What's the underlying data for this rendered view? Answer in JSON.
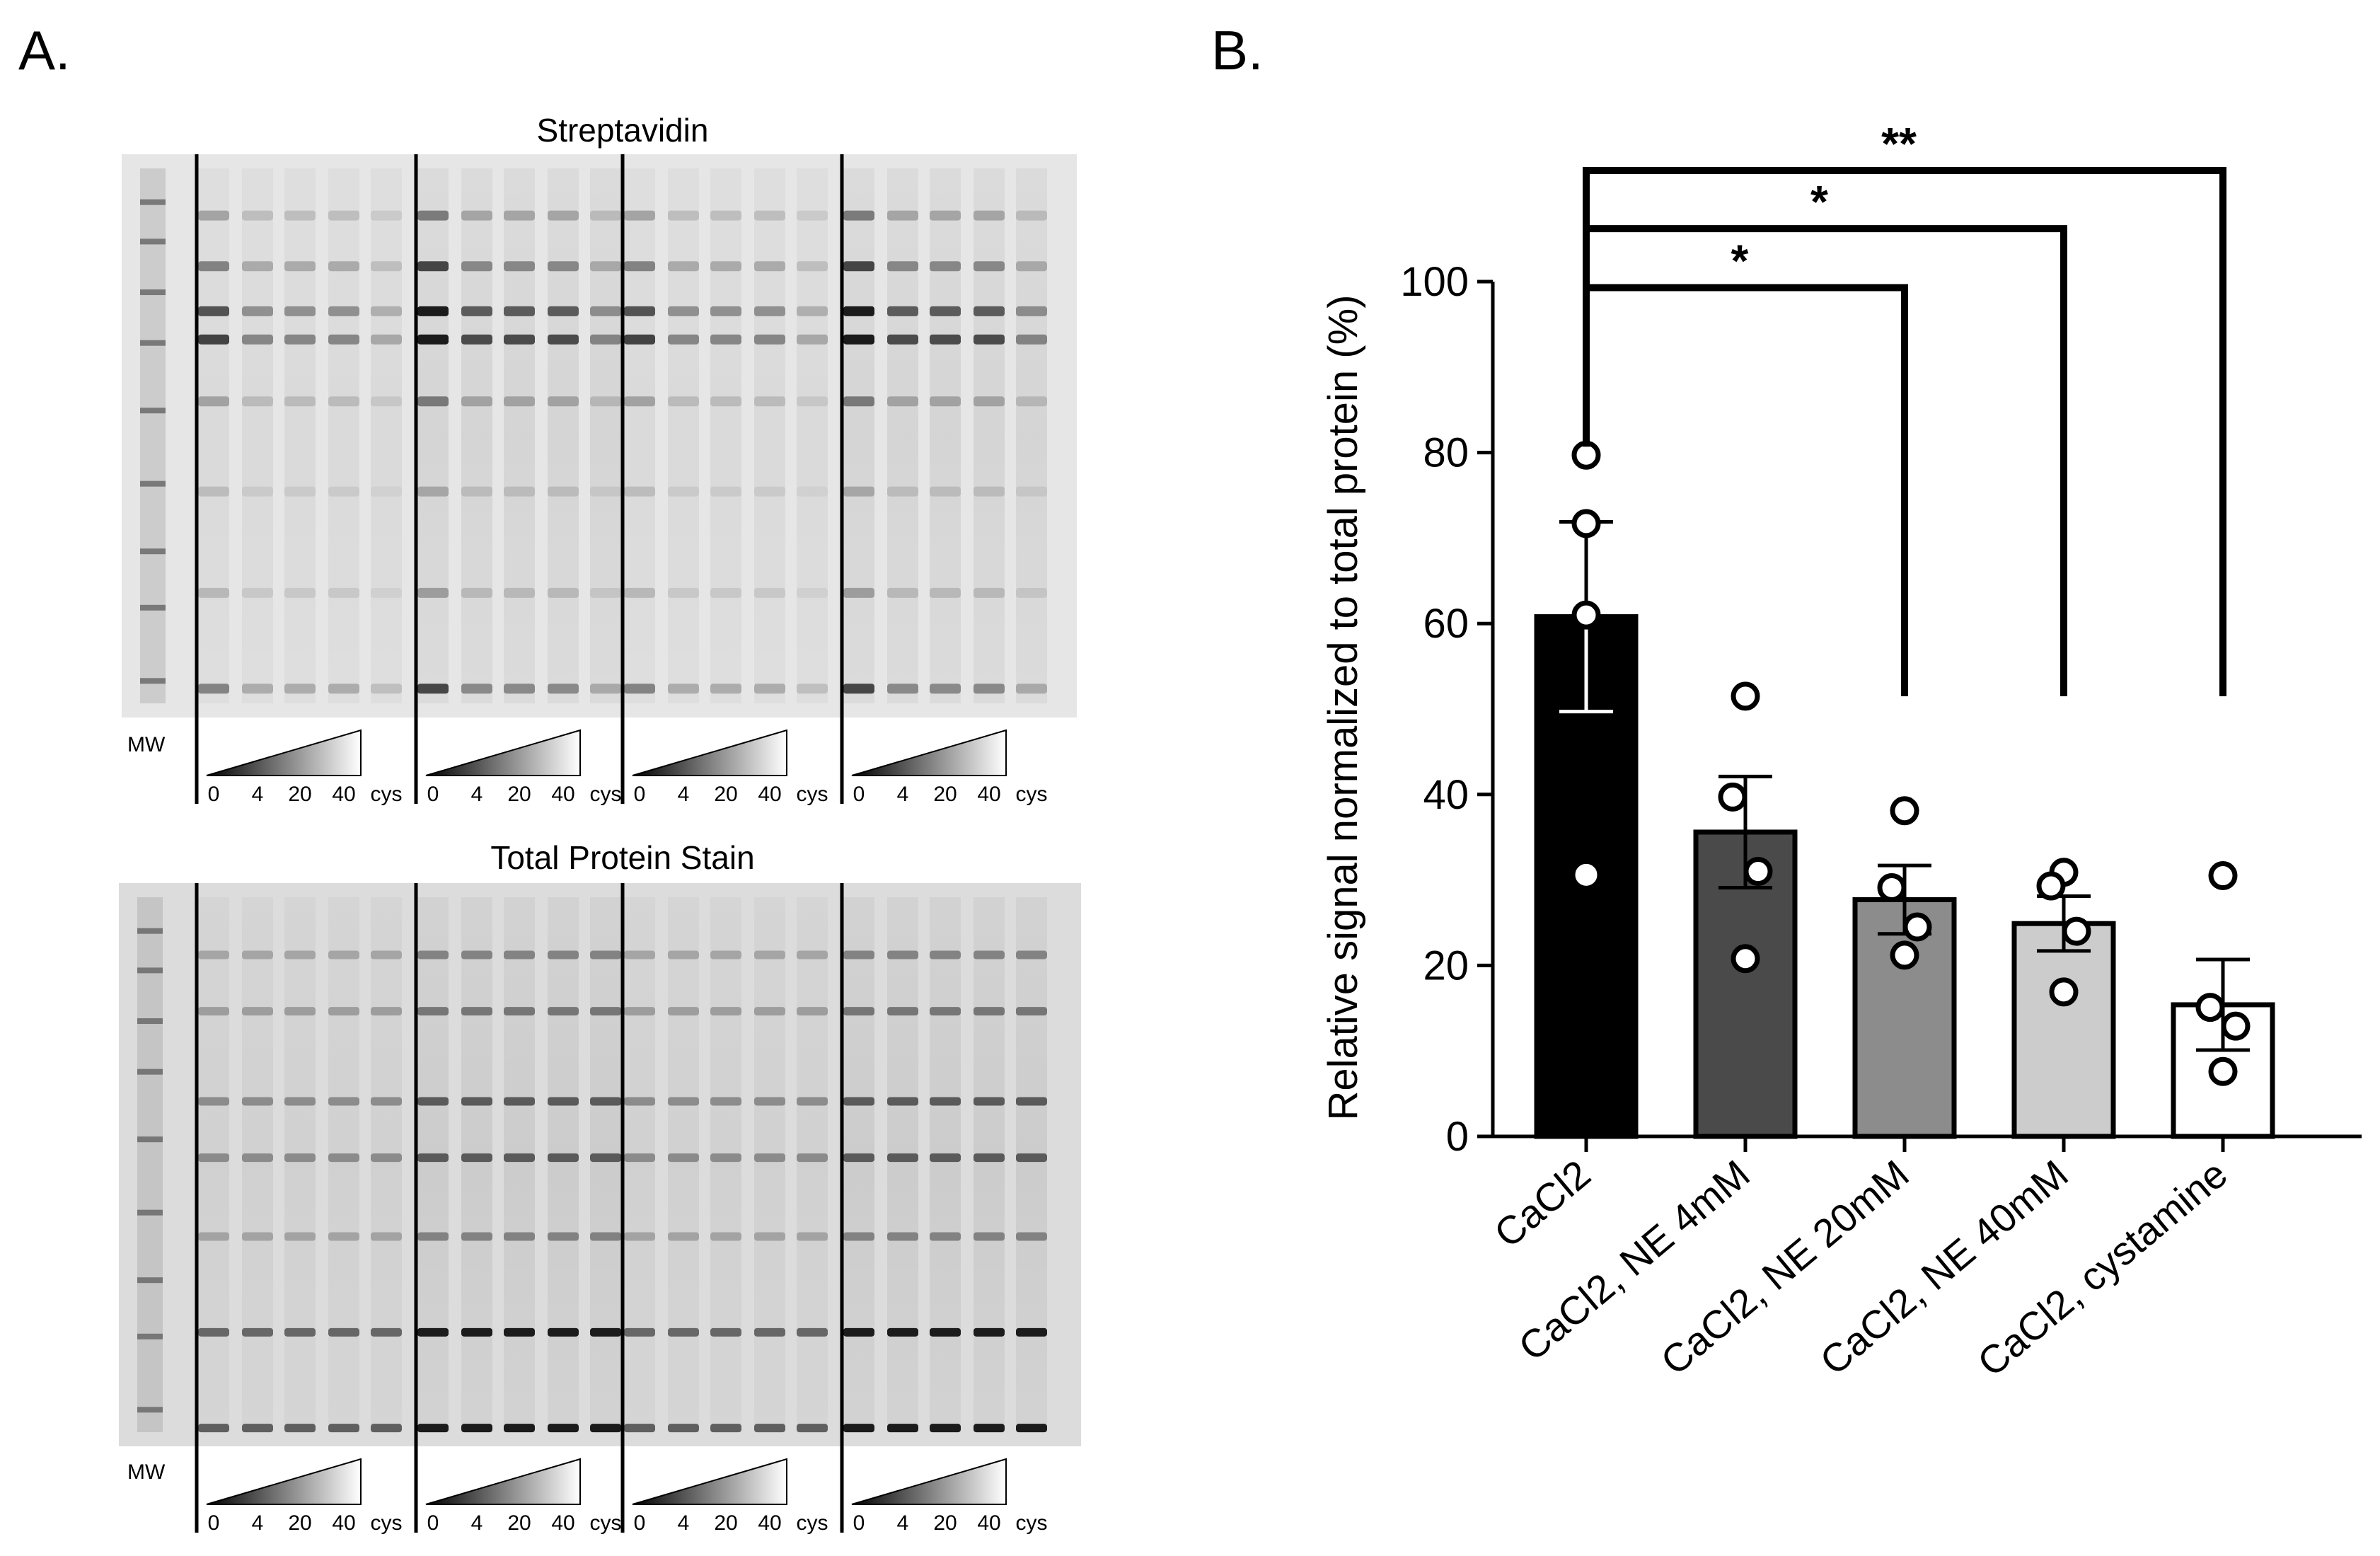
{
  "panel_a": {
    "label": "A.",
    "blots": [
      {
        "title": "Streptavidin"
      },
      {
        "title": "Total Protein Stain"
      }
    ],
    "mw_label": "MW",
    "lane_labels": [
      "0",
      "4",
      "20",
      "40",
      "cys"
    ],
    "group_count": 4
  },
  "panel_b": {
    "label": "B."
  },
  "chart_data": {
    "type": "bar",
    "categories": [
      "CaCl2",
      "CaCl2, NE 4mM",
      "CaCl2, NE 20mM",
      "CaCl2, NE 40mM",
      "CaCl2, cystamine"
    ],
    "values": [
      60.8,
      35.6,
      27.7,
      24.9,
      15.4
    ],
    "sem": [
      11.1,
      6.5,
      4.0,
      3.2,
      5.3
    ],
    "points": [
      [
        79.7,
        71.7,
        61.0,
        30.6
      ],
      [
        51.5,
        39.7,
        31.0,
        20.8
      ],
      [
        38.1,
        29.1,
        24.5,
        21.2
      ],
      [
        30.9,
        29.3,
        24.0,
        16.9
      ],
      [
        30.5,
        15.1,
        12.9,
        7.6
      ]
    ],
    "bar_colors": [
      "#000000",
      "#4a4a4a",
      "#8c8c8c",
      "#cccccc",
      "#ffffff"
    ],
    "ylabel": "Relative signal normalized to total protein (%)",
    "xlabel": "",
    "ylim": [
      0,
      100
    ],
    "yticks": [
      0,
      20,
      40,
      60,
      80,
      100
    ],
    "grid": false,
    "significance": [
      {
        "from": 0,
        "to": 2,
        "label": "*"
      },
      {
        "from": 0,
        "to": 3,
        "label": "*"
      },
      {
        "from": 0,
        "to": 4,
        "label": "**"
      }
    ]
  }
}
